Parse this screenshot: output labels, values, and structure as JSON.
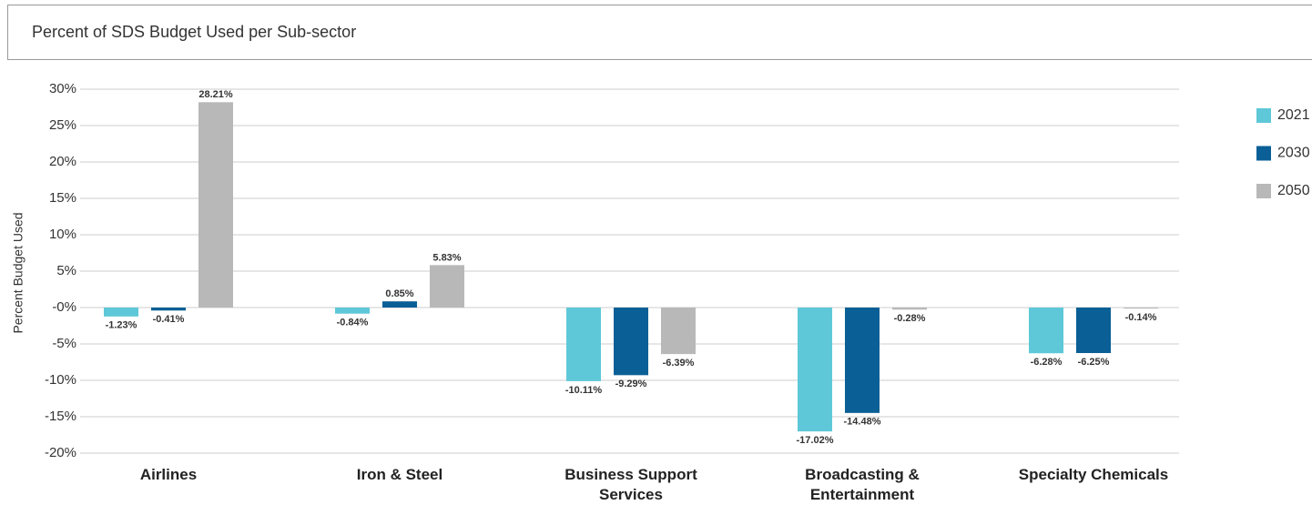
{
  "chart_data": {
    "type": "bar",
    "title": "Percent of SDS Budget Used per Sub-sector",
    "ylabel": "Percent Budget Used",
    "categories": [
      "Airlines",
      "Iron & Steel",
      "Business Support Services",
      "Broadcasting & Entertainment",
      "Specialty Chemicals"
    ],
    "series": [
      {
        "name": "2021",
        "color": "#5ec8d8",
        "values": [
          -1.23,
          -0.84,
          -10.11,
          -17.02,
          -6.28
        ],
        "value_labels": [
          "-1.23%",
          "-0.84%",
          "-10.11%",
          "-17.02%",
          "-6.28%"
        ]
      },
      {
        "name": "2030",
        "color": "#0a5f96",
        "values": [
          -0.41,
          0.85,
          -9.29,
          -14.48,
          -6.25
        ],
        "value_labels": [
          "-0.41%",
          "0.85%",
          "-9.29%",
          "-14.48%",
          "-6.25%"
        ]
      },
      {
        "name": "2050",
        "color": "#b8b8b8",
        "values": [
          28.21,
          5.83,
          -6.39,
          -0.28,
          -0.14
        ],
        "value_labels": [
          "28.21%",
          "5.83%",
          "-6.39%",
          "-0.28%",
          "-0.14%"
        ]
      }
    ],
    "ylim": [
      -20,
      30
    ],
    "yticks": [
      {
        "value": -20,
        "label": "-20%"
      },
      {
        "value": -15,
        "label": "-15%"
      },
      {
        "value": -10,
        "label": "-10%"
      },
      {
        "value": -5,
        "label": "-5%"
      },
      {
        "value": 0,
        "label": "-0%"
      },
      {
        "value": 5,
        "label": "5%"
      },
      {
        "value": 10,
        "label": "10%"
      },
      {
        "value": 15,
        "label": "15%"
      },
      {
        "value": 20,
        "label": "20%"
      },
      {
        "value": 25,
        "label": "25%"
      },
      {
        "value": 30,
        "label": "30%"
      }
    ],
    "grid": true,
    "legend": "right"
  }
}
